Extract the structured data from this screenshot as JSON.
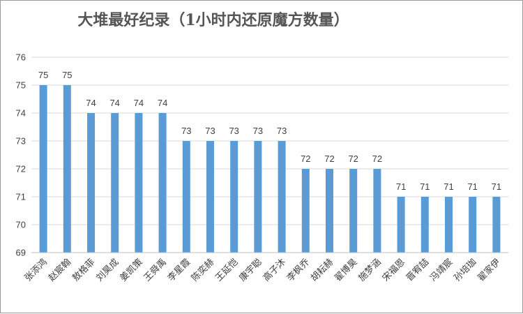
{
  "chart_data": {
    "type": "bar",
    "title": "大堆最好纪录（1小时内还原魔方数量）",
    "categories": [
      "张添鸿",
      "赵宸翰",
      "敖格菲",
      "刘昊成",
      "姜凯策",
      "王舜禹",
      "李星霞",
      "陈奕赫",
      "王延恺",
      "康宇聪",
      "高子沐",
      "李枫乔",
      "胡耘赫",
      "翟博昊",
      "施梦涵",
      "宋福恩",
      "晋宥喆",
      "冯靖宸",
      "孙培珈",
      "翟家伊"
    ],
    "values": [
      75,
      75,
      74,
      74,
      74,
      74,
      73,
      73,
      73,
      73,
      73,
      72,
      72,
      72,
      72,
      71,
      71,
      71,
      71,
      71
    ],
    "ylim": [
      69,
      76
    ],
    "yticks": [
      69,
      70,
      71,
      72,
      73,
      74,
      75,
      76
    ],
    "bar_color": "#5b9bd5",
    "grid": true,
    "legend": "none"
  }
}
